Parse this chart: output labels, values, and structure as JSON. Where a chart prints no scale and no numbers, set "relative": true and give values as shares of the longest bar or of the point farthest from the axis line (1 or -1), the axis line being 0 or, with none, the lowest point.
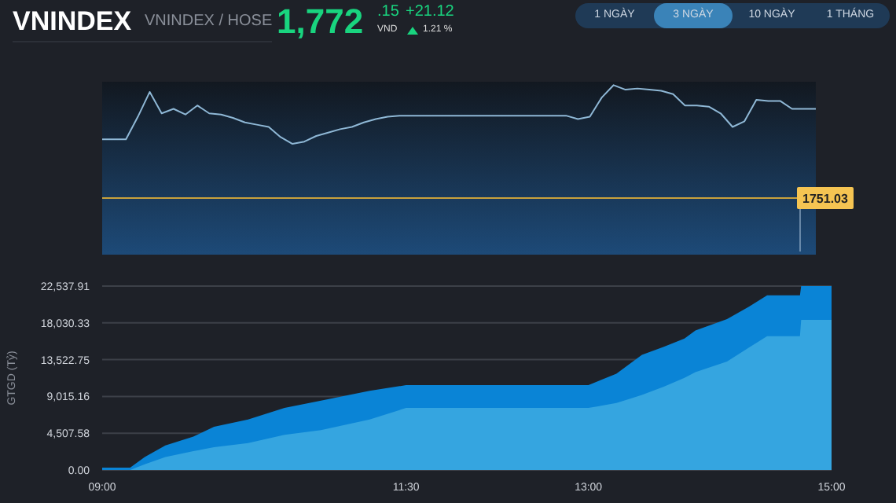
{
  "chart_data": [
    {
      "type": "other",
      "title": "VNINDEX",
      "subtitle": "VNINDEX / HOSE",
      "annotations": [
        "1,772",
        ".15",
        "VND",
        "+21.12",
        "1.21 %",
        "1 NGÀY",
        "3 NGÀY",
        "10 NGÀY",
        "1 THÁNG"
      ]
    },
    {
      "type": "line",
      "relative": true,
      "tick_labels": false,
      "color": "#8fb8d6",
      "annotations": [
        "1751.03"
      ],
      "categories": [
        null,
        null,
        null,
        null,
        null,
        null,
        null,
        null,
        null,
        null,
        null,
        null,
        null,
        null,
        null,
        null,
        null,
        null,
        null,
        null,
        null,
        null,
        null,
        null,
        null,
        null,
        null,
        null,
        null,
        null,
        null,
        null,
        null,
        null,
        null,
        null,
        null,
        null,
        null,
        null,
        null,
        null,
        null,
        null,
        null,
        null,
        null,
        null,
        null,
        null,
        null,
        null,
        null,
        null,
        null,
        null,
        null,
        null,
        null,
        null,
        null
      ],
      "values": [
        0.52,
        0.52,
        0.52,
        0.72,
        0.94,
        0.75,
        0.79,
        0.74,
        0.82,
        0.75,
        0.74,
        0.71,
        0.67,
        0.65,
        0.63,
        0.54,
        0.48,
        0.5,
        0.55,
        0.58,
        0.61,
        0.63,
        0.67,
        0.7,
        0.72,
        0.73,
        0.73,
        0.73,
        0.73,
        0.73,
        0.73,
        0.73,
        0.73,
        0.73,
        0.73,
        0.73,
        0.73,
        0.73,
        0.73,
        0.73,
        0.7,
        0.72,
        0.89,
        1,
        0.96,
        0.97,
        0.96,
        0.95,
        0.92,
        0.82,
        0.82,
        0.81,
        0.75,
        0.63,
        0.68,
        0.87,
        0.86,
        0.86,
        0.79,
        0.79,
        0.79
      ],
      "ref_lines": [
        {
          "axis": "y",
          "value": 0,
          "color": "#c9a23c"
        }
      ]
    },
    {
      "type": "area",
      "ylabel": "GTGD (Tỷ)",
      "grid": "y",
      "xlim": [
        9,
        15
      ],
      "xticks": [
        {
          "value": 9,
          "label": "09:00"
        },
        {
          "value": 11.5,
          "label": "11:30"
        },
        {
          "value": 13,
          "label": "13:00"
        },
        {
          "value": 15,
          "label": "15:00"
        }
      ],
      "ylim": [
        0,
        22537.91
      ],
      "yticks": [
        {
          "value": 0,
          "label": "0.00"
        },
        {
          "value": 4507.58,
          "label": "4,507.58"
        },
        {
          "value": 9015.16,
          "label": "9,015.16"
        },
        {
          "value": 13522.75,
          "label": "13,522.75"
        },
        {
          "value": 18030.33,
          "label": "18,030.33"
        },
        {
          "value": 22537.91,
          "label": "22,537.91"
        }
      ],
      "x": [
        9.0,
        9.23,
        9.35,
        9.52,
        9.75,
        9.92,
        10.2,
        10.5,
        10.8,
        11.2,
        11.5,
        13.0,
        13.23,
        13.44,
        13.62,
        13.79,
        13.88,
        14.14,
        14.32,
        14.47,
        14.74,
        14.75,
        15.0
      ],
      "series": [
        {
          "color": "#0a84d6",
          "values": [
            300,
            300,
            1600,
            3000,
            4100,
            5300,
            6200,
            7600,
            8500,
            9700,
            10400,
            10400,
            11800,
            14100,
            15100,
            16100,
            17100,
            18500,
            20000,
            21400,
            21400,
            22537.91,
            22537.91
          ]
        },
        {
          "color": "#35a5e0",
          "values": [
            0,
            0,
            700,
            1600,
            2300,
            2800,
            3300,
            4300,
            4900,
            6200,
            7600,
            7600,
            8200,
            9200,
            10200,
            11300,
            12000,
            13300,
            15000,
            16400,
            16400,
            18400,
            18400
          ]
        }
      ]
    }
  ]
}
